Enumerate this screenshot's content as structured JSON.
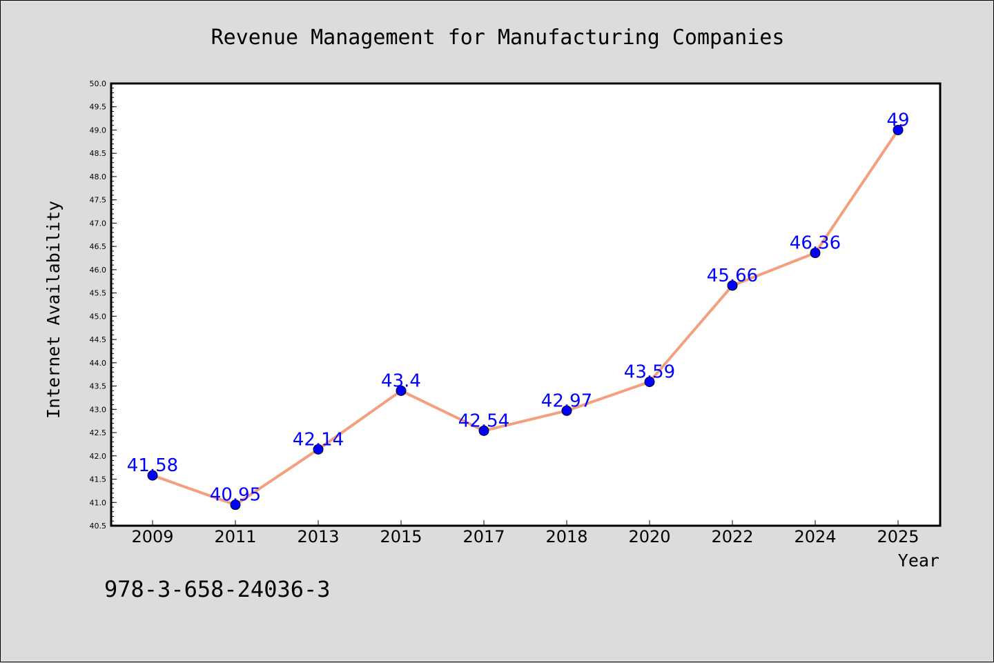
{
  "chart_data": {
    "type": "line",
    "title": "Revenue Management for Manufacturing Companies",
    "xlabel": "Year",
    "ylabel": "Internet Availability",
    "categories": [
      "2009",
      "2011",
      "2013",
      "2015",
      "2017",
      "2018",
      "2020",
      "2022",
      "2024",
      "2025"
    ],
    "values": [
      41.58,
      40.95,
      42.14,
      43.4,
      42.54,
      42.97,
      43.59,
      45.66,
      46.36,
      49
    ],
    "data_labels": [
      "41.58",
      "40.95",
      "42.14",
      "43.4",
      "42.54",
      "42.97",
      "43.59",
      "45.66",
      "46.36",
      "49"
    ],
    "ylim": [
      40.5,
      50.0
    ],
    "yticks": [
      "40.5",
      "41.0",
      "41.5",
      "42.0",
      "42.5",
      "43.0",
      "43.5",
      "44.0",
      "44.5",
      "45.0",
      "45.5",
      "46.0",
      "46.5",
      "47.0",
      "47.5",
      "48.0",
      "48.5",
      "49.0",
      "49.5",
      "50.0"
    ],
    "grid": false,
    "line_color": "#f4a07f",
    "marker_color": "#0000ff",
    "label_color": "#0000ff"
  },
  "footer": {
    "isbn": "978-3-658-24036-3"
  }
}
